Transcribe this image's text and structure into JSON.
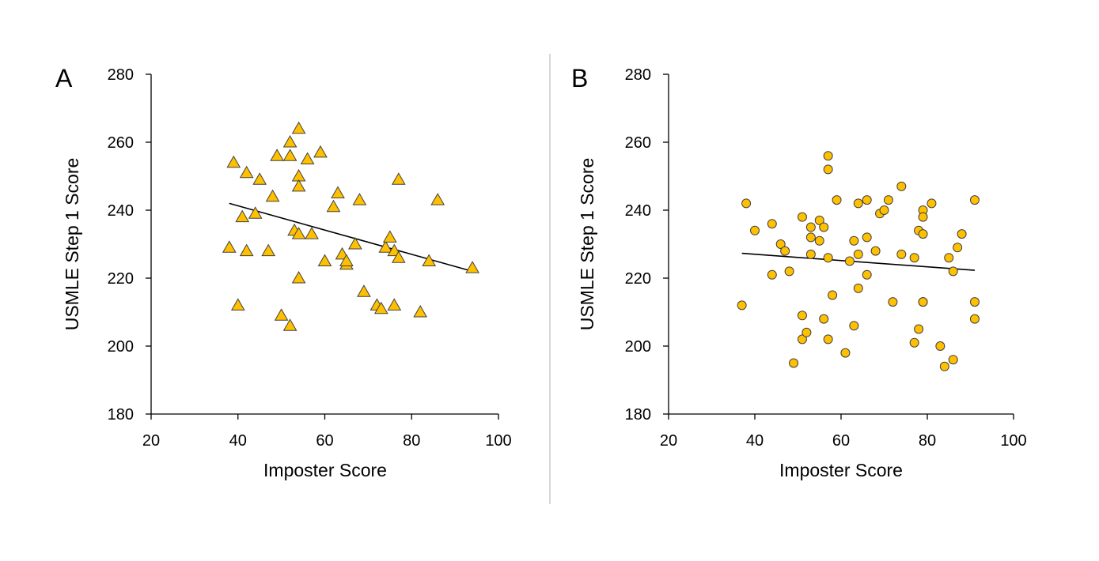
{
  "chart_data": [
    {
      "type": "scatter",
      "panel_label": "A",
      "xlabel": "Imposter Score",
      "ylabel": "USMLE Step 1 Score",
      "xlim": [
        20,
        100
      ],
      "ylim": [
        180,
        280
      ],
      "x_ticks": [
        "20",
        "40",
        "60",
        "80",
        "100"
      ],
      "y_ticks": [
        "180",
        "200",
        "220",
        "240",
        "260",
        "280"
      ],
      "grid": false,
      "marker": "triangle",
      "marker_color": "#FFC000",
      "marker_edge_color": "#404040",
      "trendline": {
        "x": [
          38,
          94
        ],
        "y": [
          242,
          222
        ]
      },
      "points": [
        {
          "x": 38,
          "y": 229
        },
        {
          "x": 39,
          "y": 254
        },
        {
          "x": 40,
          "y": 212
        },
        {
          "x": 41,
          "y": 238
        },
        {
          "x": 42,
          "y": 251
        },
        {
          "x": 42,
          "y": 228
        },
        {
          "x": 44,
          "y": 239
        },
        {
          "x": 45,
          "y": 249
        },
        {
          "x": 47,
          "y": 228
        },
        {
          "x": 48,
          "y": 244
        },
        {
          "x": 49,
          "y": 256
        },
        {
          "x": 50,
          "y": 209
        },
        {
          "x": 52,
          "y": 260
        },
        {
          "x": 52,
          "y": 256
        },
        {
          "x": 52,
          "y": 206
        },
        {
          "x": 53,
          "y": 234
        },
        {
          "x": 54,
          "y": 264
        },
        {
          "x": 54,
          "y": 250
        },
        {
          "x": 54,
          "y": 247
        },
        {
          "x": 54,
          "y": 233
        },
        {
          "x": 54,
          "y": 220
        },
        {
          "x": 56,
          "y": 255
        },
        {
          "x": 57,
          "y": 233
        },
        {
          "x": 59,
          "y": 257
        },
        {
          "x": 60,
          "y": 225
        },
        {
          "x": 62,
          "y": 241
        },
        {
          "x": 63,
          "y": 245
        },
        {
          "x": 64,
          "y": 227
        },
        {
          "x": 65,
          "y": 224
        },
        {
          "x": 65,
          "y": 225
        },
        {
          "x": 67,
          "y": 230
        },
        {
          "x": 68,
          "y": 243
        },
        {
          "x": 69,
          "y": 216
        },
        {
          "x": 72,
          "y": 212
        },
        {
          "x": 73,
          "y": 211
        },
        {
          "x": 74,
          "y": 229
        },
        {
          "x": 75,
          "y": 232
        },
        {
          "x": 76,
          "y": 228
        },
        {
          "x": 76,
          "y": 212
        },
        {
          "x": 77,
          "y": 226
        },
        {
          "x": 77,
          "y": 249
        },
        {
          "x": 82,
          "y": 210
        },
        {
          "x": 84,
          "y": 225
        },
        {
          "x": 86,
          "y": 243
        },
        {
          "x": 94,
          "y": 223
        }
      ]
    },
    {
      "type": "scatter",
      "panel_label": "B",
      "xlabel": "Imposter Score",
      "ylabel": "USMLE Step 1 Score",
      "xlim": [
        20,
        100
      ],
      "ylim": [
        180,
        280
      ],
      "x_ticks": [
        "20",
        "40",
        "60",
        "80",
        "100"
      ],
      "y_ticks": [
        "180",
        "200",
        "220",
        "240",
        "260",
        "280"
      ],
      "grid": false,
      "marker": "circle",
      "marker_color": "#FFC000",
      "marker_edge_color": "#404040",
      "trendline": {
        "x": [
          37,
          91
        ],
        "y": [
          227.3,
          222.3
        ]
      },
      "points": [
        {
          "x": 37,
          "y": 212
        },
        {
          "x": 38,
          "y": 242
        },
        {
          "x": 40,
          "y": 234
        },
        {
          "x": 44,
          "y": 236
        },
        {
          "x": 44,
          "y": 221
        },
        {
          "x": 46,
          "y": 230
        },
        {
          "x": 47,
          "y": 228
        },
        {
          "x": 48,
          "y": 222
        },
        {
          "x": 49,
          "y": 195
        },
        {
          "x": 51,
          "y": 238
        },
        {
          "x": 51,
          "y": 209
        },
        {
          "x": 51,
          "y": 202
        },
        {
          "x": 52,
          "y": 204
        },
        {
          "x": 53,
          "y": 235
        },
        {
          "x": 53,
          "y": 232
        },
        {
          "x": 53,
          "y": 227
        },
        {
          "x": 55,
          "y": 237
        },
        {
          "x": 55,
          "y": 231
        },
        {
          "x": 56,
          "y": 235
        },
        {
          "x": 56,
          "y": 208
        },
        {
          "x": 57,
          "y": 256
        },
        {
          "x": 57,
          "y": 252
        },
        {
          "x": 57,
          "y": 226
        },
        {
          "x": 57,
          "y": 202
        },
        {
          "x": 58,
          "y": 215
        },
        {
          "x": 59,
          "y": 243
        },
        {
          "x": 61,
          "y": 198
        },
        {
          "x": 62,
          "y": 225
        },
        {
          "x": 63,
          "y": 231
        },
        {
          "x": 63,
          "y": 206
        },
        {
          "x": 64,
          "y": 242
        },
        {
          "x": 64,
          "y": 227
        },
        {
          "x": 64,
          "y": 217
        },
        {
          "x": 66,
          "y": 243
        },
        {
          "x": 66,
          "y": 232
        },
        {
          "x": 66,
          "y": 221
        },
        {
          "x": 68,
          "y": 228
        },
        {
          "x": 69,
          "y": 239
        },
        {
          "x": 70,
          "y": 240
        },
        {
          "x": 71,
          "y": 243
        },
        {
          "x": 72,
          "y": 213
        },
        {
          "x": 74,
          "y": 247
        },
        {
          "x": 74,
          "y": 227
        },
        {
          "x": 77,
          "y": 226
        },
        {
          "x": 77,
          "y": 201
        },
        {
          "x": 78,
          "y": 234
        },
        {
          "x": 78,
          "y": 205
        },
        {
          "x": 79,
          "y": 213
        },
        {
          "x": 79,
          "y": 240
        },
        {
          "x": 79,
          "y": 238
        },
        {
          "x": 79,
          "y": 233
        },
        {
          "x": 79,
          "y": 213
        },
        {
          "x": 81,
          "y": 242
        },
        {
          "x": 83,
          "y": 200
        },
        {
          "x": 84,
          "y": 194
        },
        {
          "x": 85,
          "y": 226
        },
        {
          "x": 86,
          "y": 222
        },
        {
          "x": 86,
          "y": 196
        },
        {
          "x": 87,
          "y": 229
        },
        {
          "x": 88,
          "y": 233
        },
        {
          "x": 91,
          "y": 243
        },
        {
          "x": 91,
          "y": 213
        },
        {
          "x": 91,
          "y": 208
        }
      ]
    }
  ]
}
